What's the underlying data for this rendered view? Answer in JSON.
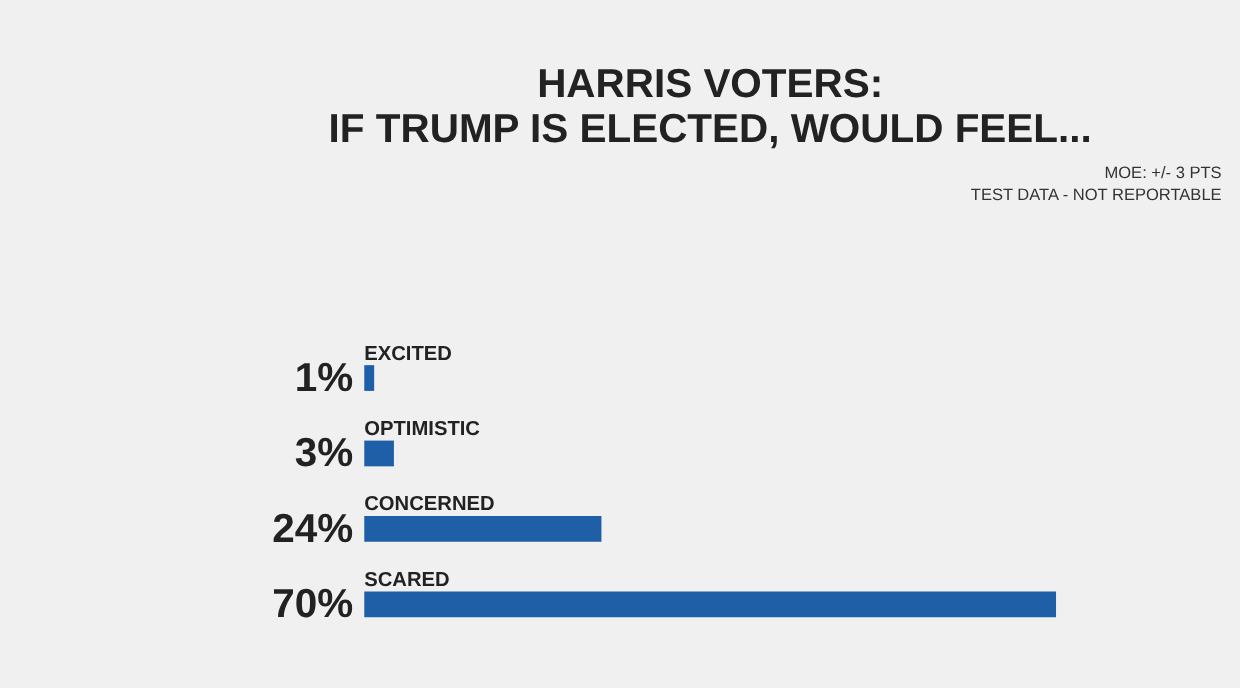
{
  "chart_data": {
    "type": "bar",
    "orientation": "horizontal",
    "title": "HARRIS VOTERS:\nIF TRUMP IS ELECTED, WOULD FEEL...",
    "categories": [
      "EXCITED",
      "OPTIMISTIC",
      "CONCERNED",
      "SCARED"
    ],
    "values": [
      1,
      3,
      24,
      70
    ],
    "color": "#1f5fa8",
    "value_labels": [
      "1%",
      "3%",
      "24%",
      "70%"
    ],
    "annotations": [
      "MOE: +/- 3 PTS",
      "TEST DATA - NOT REPORTABLE"
    ]
  }
}
